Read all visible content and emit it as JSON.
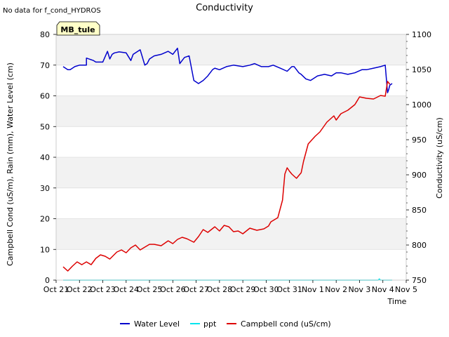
{
  "note": "No data for f_cond_HYDROS",
  "chart_data": {
    "type": "line",
    "title": "Conductivity",
    "xlabel": "Time",
    "ylabel_left": "Campbell Cond (uS/m), Rain (mm), Water Level (cm)",
    "ylabel_right": "Conductivity (uS/cm)",
    "site_label": "MB_tule",
    "x_tick_labels": [
      "Oct 21",
      "Oct 22",
      "Oct 23",
      "Oct 24",
      "Oct 25",
      "Oct 26",
      "Oct 27",
      "Oct 28",
      "Oct 29",
      "Oct 30",
      "Oct 31",
      "Nov 1",
      "Nov 2",
      "Nov 3",
      "Nov 4",
      "Nov 5"
    ],
    "x_range_days": [
      0,
      15
    ],
    "ylim_left": [
      0,
      80
    ],
    "yticks_left": [
      0,
      10,
      20,
      30,
      40,
      50,
      60,
      70,
      80
    ],
    "ylim_right": [
      750,
      1100
    ],
    "yticks_right": [
      750,
      800,
      850,
      900,
      950,
      1000,
      1050,
      1100
    ],
    "legend": [
      "Water Level",
      "ppt",
      "Campbell cond (uS/cm)"
    ],
    "colors": {
      "water_level": "#0000cc",
      "ppt": "#00e5ee",
      "campbell": "#dd0000",
      "band": "#f2f2f2",
      "grid": "#dcdcdc",
      "label_bg": "#ffffc8",
      "label_text": "#8b0000"
    },
    "series": [
      {
        "name": "Water Level",
        "axis": "left",
        "x": [
          0.3,
          0.5,
          0.6,
          0.8,
          1.0,
          1.3,
          1.3,
          1.6,
          1.7,
          2.0,
          2.2,
          2.3,
          2.4,
          2.5,
          2.7,
          3.0,
          3.2,
          3.3,
          3.4,
          3.6,
          3.8,
          3.9,
          4.0,
          4.2,
          4.5,
          4.8,
          5.0,
          5.2,
          5.3,
          5.4,
          5.5,
          5.7,
          5.9,
          6.0,
          6.1,
          6.3,
          6.5,
          6.7,
          6.8,
          7.0,
          7.3,
          7.6,
          8.0,
          8.3,
          8.5,
          8.8,
          9.1,
          9.3,
          9.6,
          9.9,
          10.1,
          10.2,
          10.4,
          10.5,
          10.7,
          10.9,
          11.2,
          11.5,
          11.8,
          12.0,
          12.2,
          12.5,
          12.8,
          13.1,
          13.3,
          13.6,
          13.9,
          14.1,
          14.2,
          14.25,
          14.3,
          14.4
        ],
        "y": [
          69.5,
          68.5,
          68.5,
          69.5,
          70,
          70,
          72.3,
          71.5,
          71,
          71,
          74.5,
          72,
          73.5,
          74,
          74.3,
          74,
          71.5,
          73.5,
          74,
          75,
          70,
          70.5,
          72,
          73,
          73.5,
          74.5,
          73.5,
          75.5,
          70.5,
          71.5,
          72.5,
          73,
          65,
          64.5,
          64,
          65,
          66.5,
          68.5,
          69,
          68.5,
          69.5,
          70,
          69.5,
          70,
          70.5,
          69.5,
          69.5,
          70,
          69,
          68,
          69.5,
          69.5,
          67.5,
          67,
          65.5,
          65,
          66.5,
          67,
          66.5,
          67.5,
          67.5,
          67,
          67.5,
          68.5,
          68.5,
          69,
          69.5,
          70,
          61,
          62,
          63.5,
          64
        ]
      },
      {
        "name": "ppt",
        "axis": "left",
        "x": [
          0.3,
          13.8,
          13.85,
          13.9,
          14.4
        ],
        "y": [
          0,
          0,
          0.4,
          0,
          0
        ]
      },
      {
        "name": "Campbell cond (uS/cm)",
        "axis": "right",
        "x": [
          0.3,
          0.5,
          0.7,
          0.9,
          1.1,
          1.3,
          1.5,
          1.7,
          1.9,
          2.1,
          2.3,
          2.6,
          2.8,
          3.0,
          3.2,
          3.4,
          3.6,
          3.8,
          4.0,
          4.2,
          4.5,
          4.8,
          5.0,
          5.2,
          5.4,
          5.6,
          5.9,
          6.1,
          6.3,
          6.5,
          6.8,
          7.0,
          7.2,
          7.4,
          7.6,
          7.8,
          8.0,
          8.3,
          8.6,
          8.9,
          9.1,
          9.2,
          9.5,
          9.7,
          9.8,
          9.9,
          10.0,
          10.1,
          10.3,
          10.5,
          10.6,
          10.8,
          11.1,
          11.3,
          11.6,
          11.9,
          12.0,
          12.2,
          12.5,
          12.8,
          13.0,
          13.3,
          13.6,
          13.9,
          14.1,
          14.2,
          14.3
        ],
        "y": [
          769,
          763,
          770,
          776,
          772,
          776,
          772,
          781,
          786,
          784,
          780,
          790,
          793,
          789,
          796,
          800,
          793,
          797,
          801,
          801,
          799,
          806,
          802,
          808,
          811,
          809,
          804,
          812,
          822,
          818,
          826,
          820,
          828,
          826,
          819,
          820,
          816,
          824,
          821,
          823,
          827,
          833,
          839,
          864,
          901,
          910,
          905,
          901,
          895,
          903,
          919,
          944,
          955,
          961,
          975,
          984,
          978,
          987,
          992,
          1000,
          1011,
          1009,
          1008,
          1013,
          1012,
          1033,
          1029
        ]
      }
    ]
  }
}
